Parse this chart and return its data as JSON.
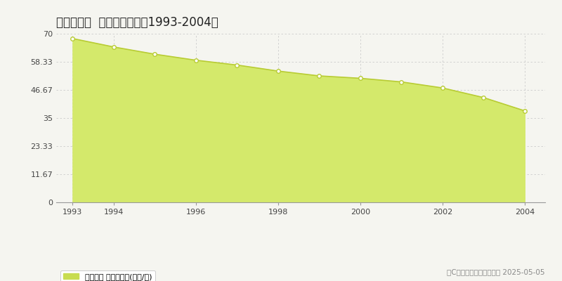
{
  "title": "坂出市本町  公示地価推移［1993-2004］",
  "years": [
    1993,
    1994,
    1995,
    1996,
    1997,
    1998,
    1999,
    2000,
    2001,
    2002,
    2003,
    2004
  ],
  "values": [
    68.0,
    64.5,
    61.5,
    59.0,
    57.0,
    54.5,
    52.5,
    51.5,
    50.0,
    47.5,
    43.5,
    38.0
  ],
  "ylim": [
    0,
    70
  ],
  "yticks": [
    0,
    11.67,
    23.33,
    35,
    46.67,
    58.33,
    70
  ],
  "ytick_labels": [
    "0",
    "11.67",
    "23.33",
    "35",
    "46.67",
    "58.33",
    "70"
  ],
  "xticks": [
    1993,
    1994,
    1996,
    1998,
    2000,
    2002,
    2004
  ],
  "area_color": "#d4e96b",
  "line_color": "#b8cc33",
  "marker_color": "#ffffff",
  "marker_edge_color": "#b8cc33",
  "grid_color": "#cccccc",
  "background_color": "#f5f5f0",
  "legend_label": "公示地価 平均嵪単価(万円/嵪)",
  "legend_color": "#c8dc50",
  "copyright_text": "（C）土地価格ドットコム 2025-05-05",
  "title_fontsize": 12,
  "tick_fontsize": 8,
  "legend_fontsize": 8,
  "copyright_fontsize": 7.5
}
